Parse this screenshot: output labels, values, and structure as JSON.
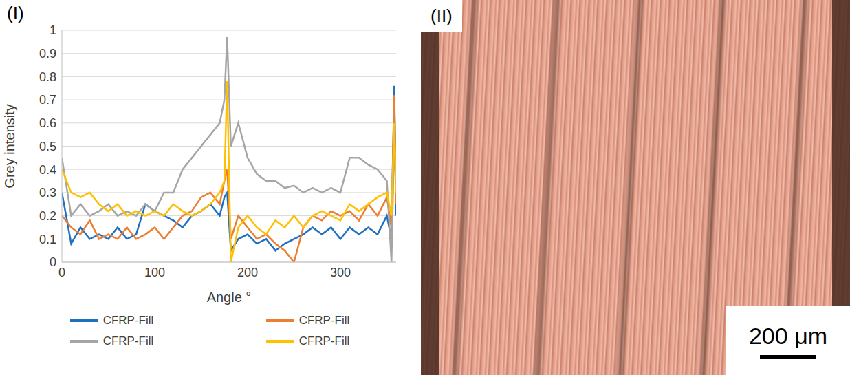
{
  "chart_data": {
    "type": "line",
    "panel_label": "(I)",
    "x_label": "Angle °",
    "y_label": "Grey intensity",
    "x": [
      0,
      10,
      20,
      30,
      40,
      50,
      60,
      70,
      80,
      90,
      100,
      110,
      120,
      130,
      140,
      150,
      160,
      170,
      175,
      178,
      182,
      190,
      200,
      210,
      220,
      230,
      240,
      250,
      260,
      270,
      280,
      290,
      300,
      310,
      320,
      330,
      340,
      350,
      355,
      358,
      360
    ],
    "series": [
      {
        "name": "CFRP-Fill",
        "color": "#1f70c1",
        "values": [
          0.3,
          0.08,
          0.15,
          0.1,
          0.12,
          0.1,
          0.15,
          0.1,
          0.12,
          0.25,
          0.22,
          0.2,
          0.18,
          0.15,
          0.2,
          0.22,
          0.25,
          0.2,
          0.28,
          0.3,
          0.05,
          0.1,
          0.12,
          0.08,
          0.1,
          0.05,
          0.08,
          0.1,
          0.12,
          0.15,
          0.12,
          0.15,
          0.1,
          0.15,
          0.12,
          0.15,
          0.12,
          0.2,
          0.1,
          0.76,
          0.2
        ]
      },
      {
        "name": "CFRP-Fill",
        "color": "#ed7d31",
        "values": [
          0.2,
          0.15,
          0.12,
          0.18,
          0.1,
          0.12,
          0.1,
          0.15,
          0.1,
          0.12,
          0.15,
          0.1,
          0.15,
          0.2,
          0.22,
          0.28,
          0.3,
          0.25,
          0.35,
          0.4,
          0.1,
          0.2,
          0.15,
          0.1,
          0.12,
          0.08,
          0.05,
          0.0,
          0.15,
          0.2,
          0.18,
          0.22,
          0.2,
          0.22,
          0.18,
          0.25,
          0.2,
          0.28,
          0.15,
          0.72,
          0.25
        ]
      },
      {
        "name": "CFRP-Fill",
        "color": "#a5a5a5",
        "values": [
          0.45,
          0.2,
          0.25,
          0.2,
          0.22,
          0.25,
          0.2,
          0.22,
          0.2,
          0.25,
          0.22,
          0.3,
          0.3,
          0.4,
          0.45,
          0.5,
          0.55,
          0.6,
          0.7,
          0.97,
          0.5,
          0.6,
          0.45,
          0.38,
          0.35,
          0.35,
          0.32,
          0.33,
          0.3,
          0.32,
          0.3,
          0.32,
          0.3,
          0.45,
          0.45,
          0.42,
          0.4,
          0.35,
          0.0,
          0.55,
          0.3
        ]
      },
      {
        "name": "CFRP-Fill",
        "color": "#ffc000",
        "values": [
          0.4,
          0.3,
          0.28,
          0.3,
          0.25,
          0.22,
          0.25,
          0.2,
          0.22,
          0.2,
          0.22,
          0.2,
          0.25,
          0.22,
          0.2,
          0.22,
          0.25,
          0.3,
          0.35,
          0.78,
          0.0,
          0.15,
          0.2,
          0.15,
          0.12,
          0.18,
          0.15,
          0.2,
          0.15,
          0.2,
          0.22,
          0.2,
          0.18,
          0.25,
          0.22,
          0.25,
          0.28,
          0.3,
          0.2,
          0.6,
          0.3
        ]
      }
    ],
    "xlim": [
      0,
      360
    ],
    "xticks": [
      0,
      100,
      200,
      300
    ],
    "ylim": [
      0,
      1
    ],
    "yticks": [
      0,
      0.1,
      0.2,
      0.3,
      0.4,
      0.5,
      0.6,
      0.7,
      0.8,
      0.9,
      1
    ],
    "grid": true,
    "legend": "bottom"
  },
  "image": {
    "panel_label": "(II)",
    "scale_bar": "200 μm"
  }
}
